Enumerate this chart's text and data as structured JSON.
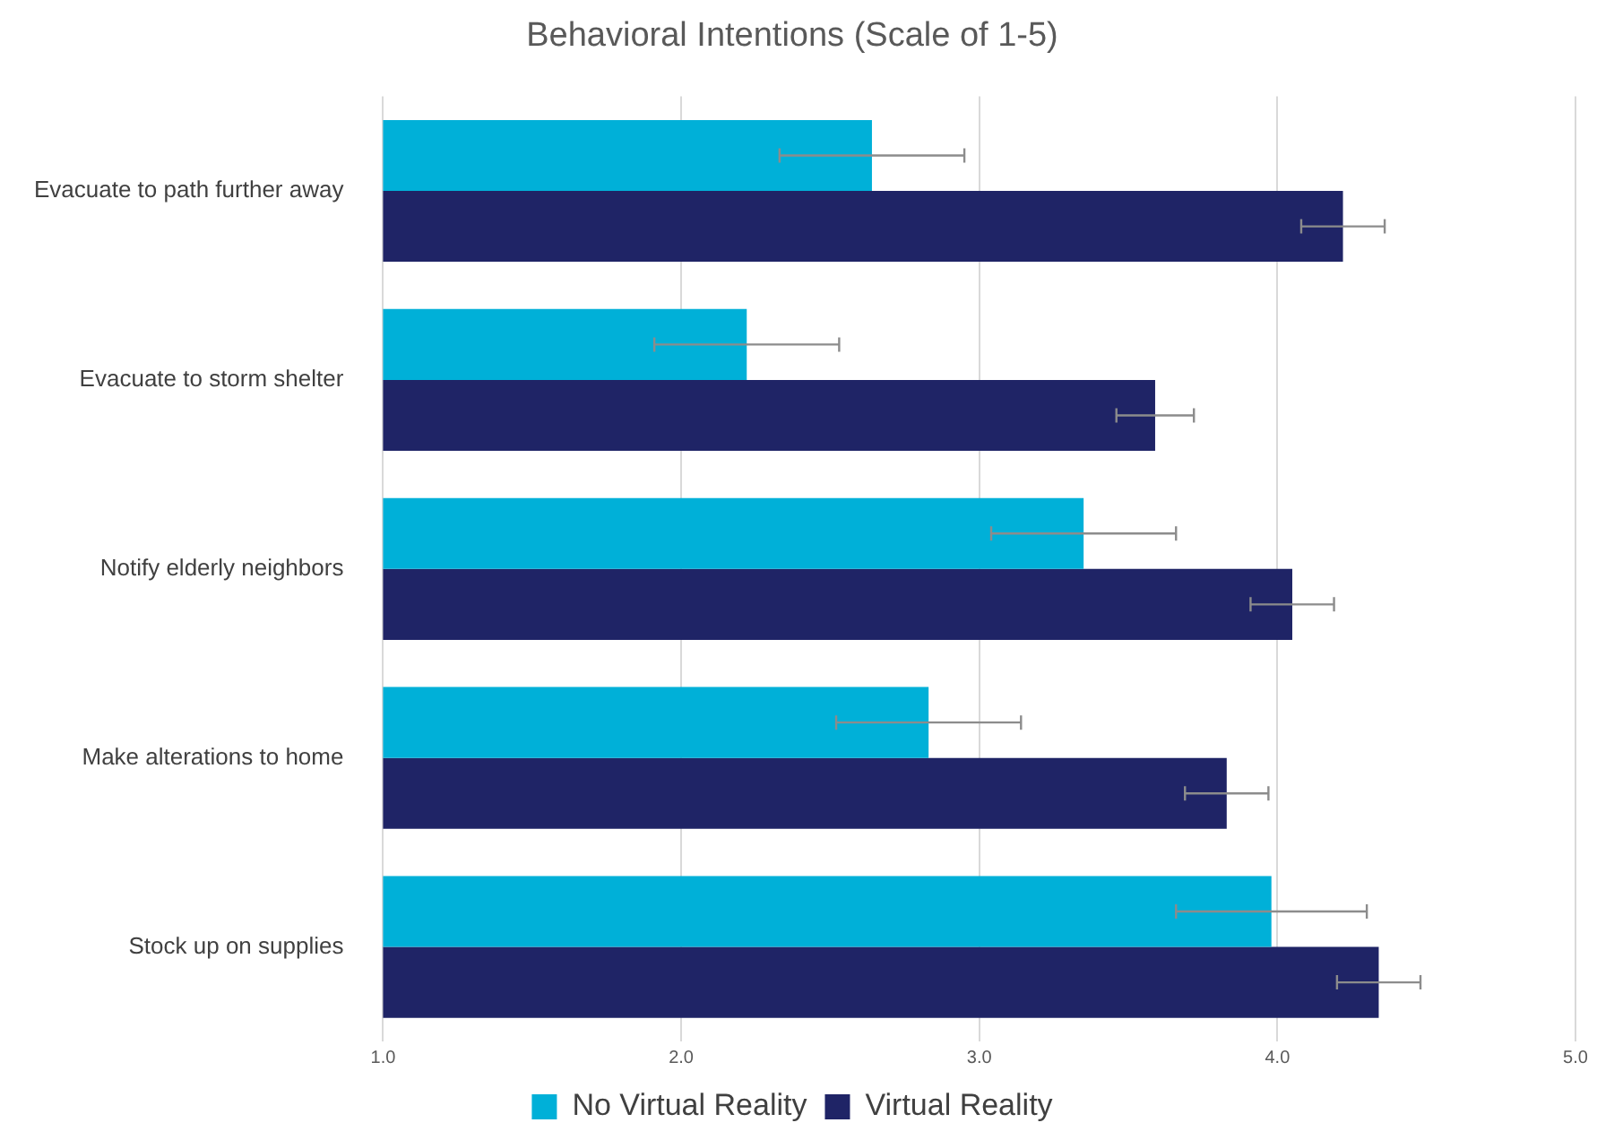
{
  "chart_data": {
    "type": "bar",
    "orientation": "horizontal",
    "title": "Behavioral Intentions (Scale of 1-5)",
    "categories": [
      "Evacuate to path further away",
      "Evacuate to storm shelter",
      "Notify elderly neighbors",
      "Make alterations to home",
      "Stock up on supplies"
    ],
    "series": [
      {
        "name": "No Virtual Reality",
        "color": "#00b0d8",
        "values": [
          2.64,
          2.22,
          3.35,
          2.83,
          3.98
        ],
        "errors": [
          0.31,
          0.31,
          0.31,
          0.31,
          0.32
        ]
      },
      {
        "name": "Virtual Reality",
        "color": "#1f2466",
        "values": [
          4.22,
          3.59,
          4.05,
          3.83,
          4.34
        ],
        "errors": [
          0.14,
          0.13,
          0.14,
          0.14,
          0.14
        ]
      }
    ],
    "xlim": [
      1,
      5
    ],
    "xticks": [
      {
        "value": 1,
        "label": "1.0"
      },
      {
        "value": 2,
        "label": "2.0"
      },
      {
        "value": 3,
        "label": "3.0"
      },
      {
        "value": 4,
        "label": "4.0"
      },
      {
        "value": 5,
        "label": "5.0"
      }
    ],
    "grid": "x",
    "legend": "bottom"
  }
}
